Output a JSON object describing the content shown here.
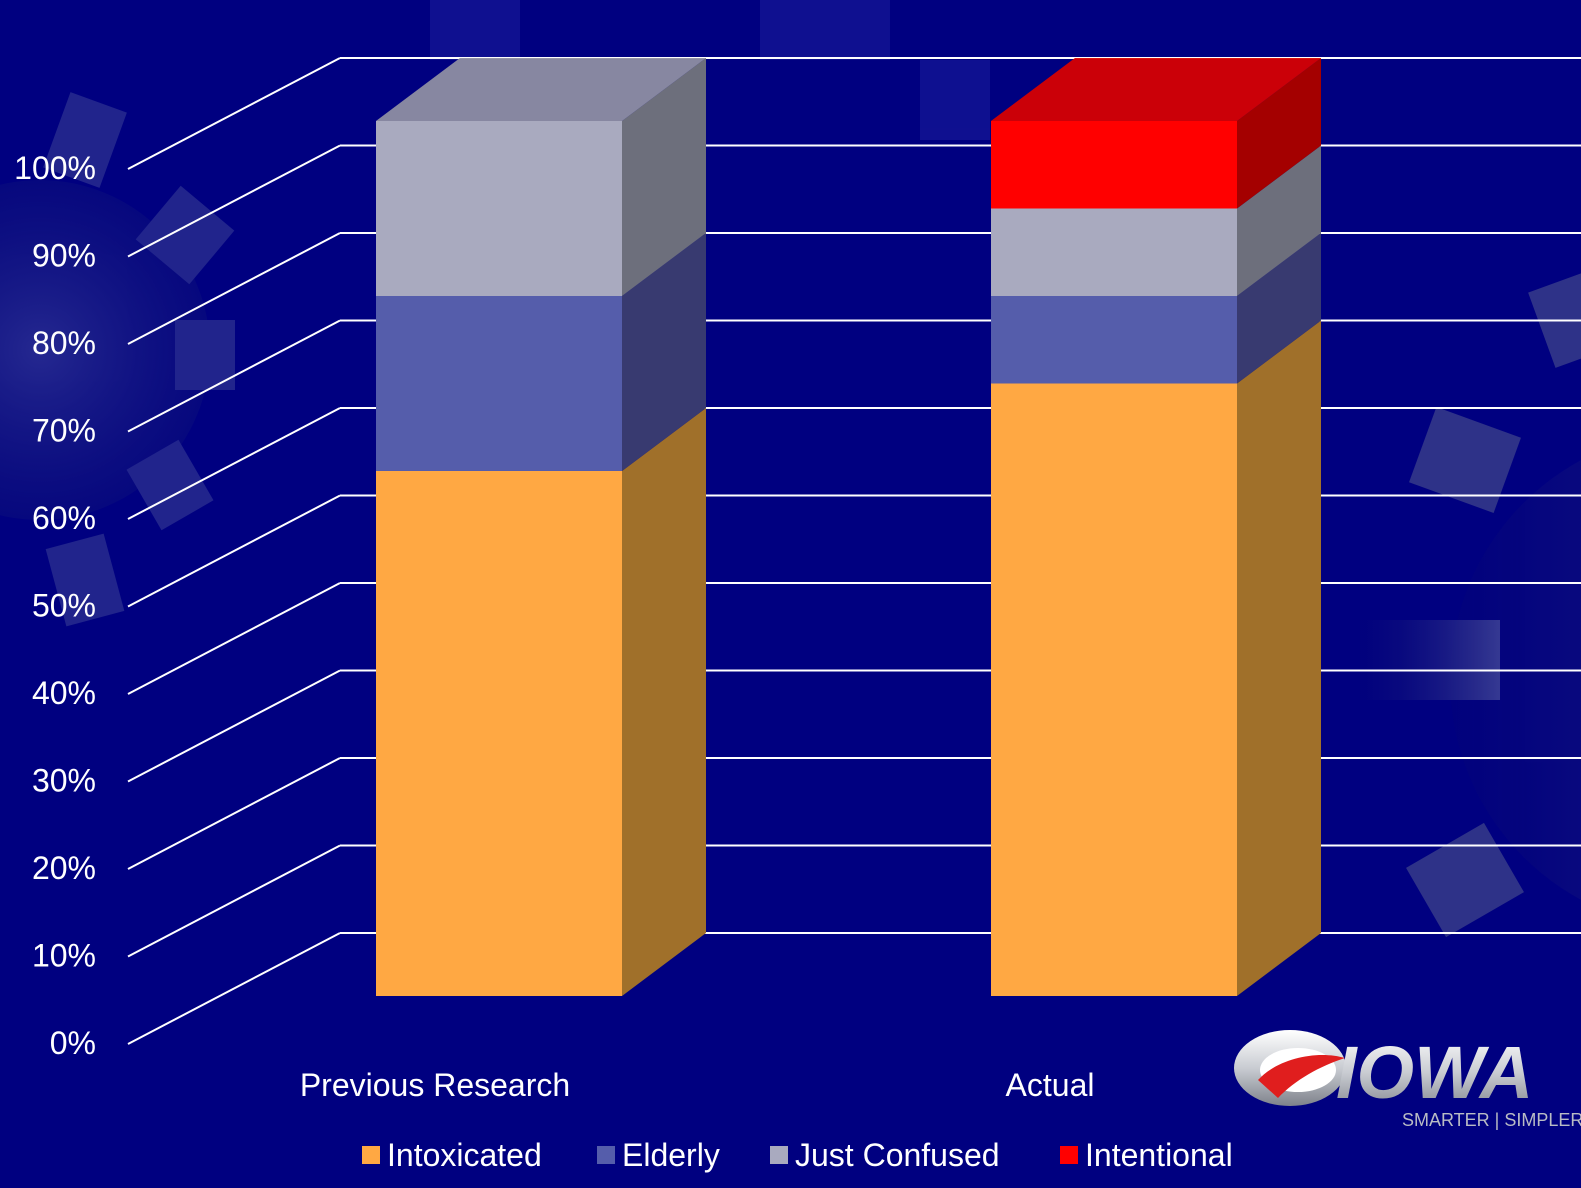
{
  "chart_data": {
    "type": "bar",
    "stacked": true,
    "three_d": true,
    "categories": [
      "Previous Research",
      "Actual"
    ],
    "series": [
      {
        "name": "Intoxicated",
        "color": "#FFA843",
        "side_color": "#A0702A",
        "values": [
          60,
          70
        ]
      },
      {
        "name": "Elderly",
        "color": "#555DAB",
        "side_color": "#383A70",
        "values": [
          20,
          10
        ]
      },
      {
        "name": "Just Confused",
        "color": "#A9AABF",
        "side_color": "#6D6F7C",
        "values": [
          20,
          10
        ]
      },
      {
        "name": "Intentional",
        "color": "#FF0000",
        "side_color": "#A40000",
        "values": [
          0,
          10
        ]
      }
    ],
    "ylim": [
      0,
      100
    ],
    "yticks": [
      "0%",
      "10%",
      "20%",
      "30%",
      "40%",
      "50%",
      "60%",
      "70%",
      "80%",
      "90%",
      "100%"
    ],
    "grid": true,
    "legend_position": "bottom",
    "background_color": "#000080",
    "gridline_color": "#FFFFFF"
  },
  "logo": {
    "name": "IOWA",
    "tagline": "SMARTER | SIMPLER"
  }
}
